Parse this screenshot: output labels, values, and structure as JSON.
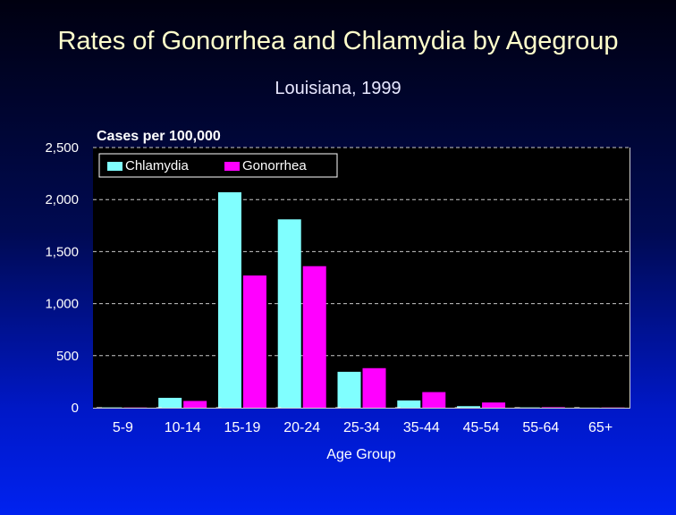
{
  "chart_data": {
    "type": "bar",
    "title": "Rates of Gonorrhea and Chlamydia by Agegroup",
    "subtitle": "Louisiana, 1999",
    "ylabel": "Cases per 100,000",
    "xlabel": "Age Group",
    "ylim": [
      0,
      2500
    ],
    "yticks": [
      0,
      500,
      1000,
      1500,
      2000,
      2500
    ],
    "ytick_labels": [
      "0",
      "500",
      "1,000",
      "1,500",
      "2,000",
      "2,500"
    ],
    "grid": true,
    "legend_position": "top",
    "categories": [
      "5-9",
      "10-14",
      "15-19",
      "20-24",
      "25-34",
      "35-44",
      "45-54",
      "55-64",
      "65+"
    ],
    "series": [
      {
        "name": "Chlamydia",
        "color": "#80ffff",
        "values": [
          3,
          95,
          2070,
          1810,
          345,
          70,
          15,
          3,
          1
        ]
      },
      {
        "name": "Gonorrhea",
        "color": "#ff00ff",
        "values": [
          2,
          65,
          1270,
          1360,
          380,
          150,
          50,
          5,
          2
        ]
      }
    ]
  }
}
